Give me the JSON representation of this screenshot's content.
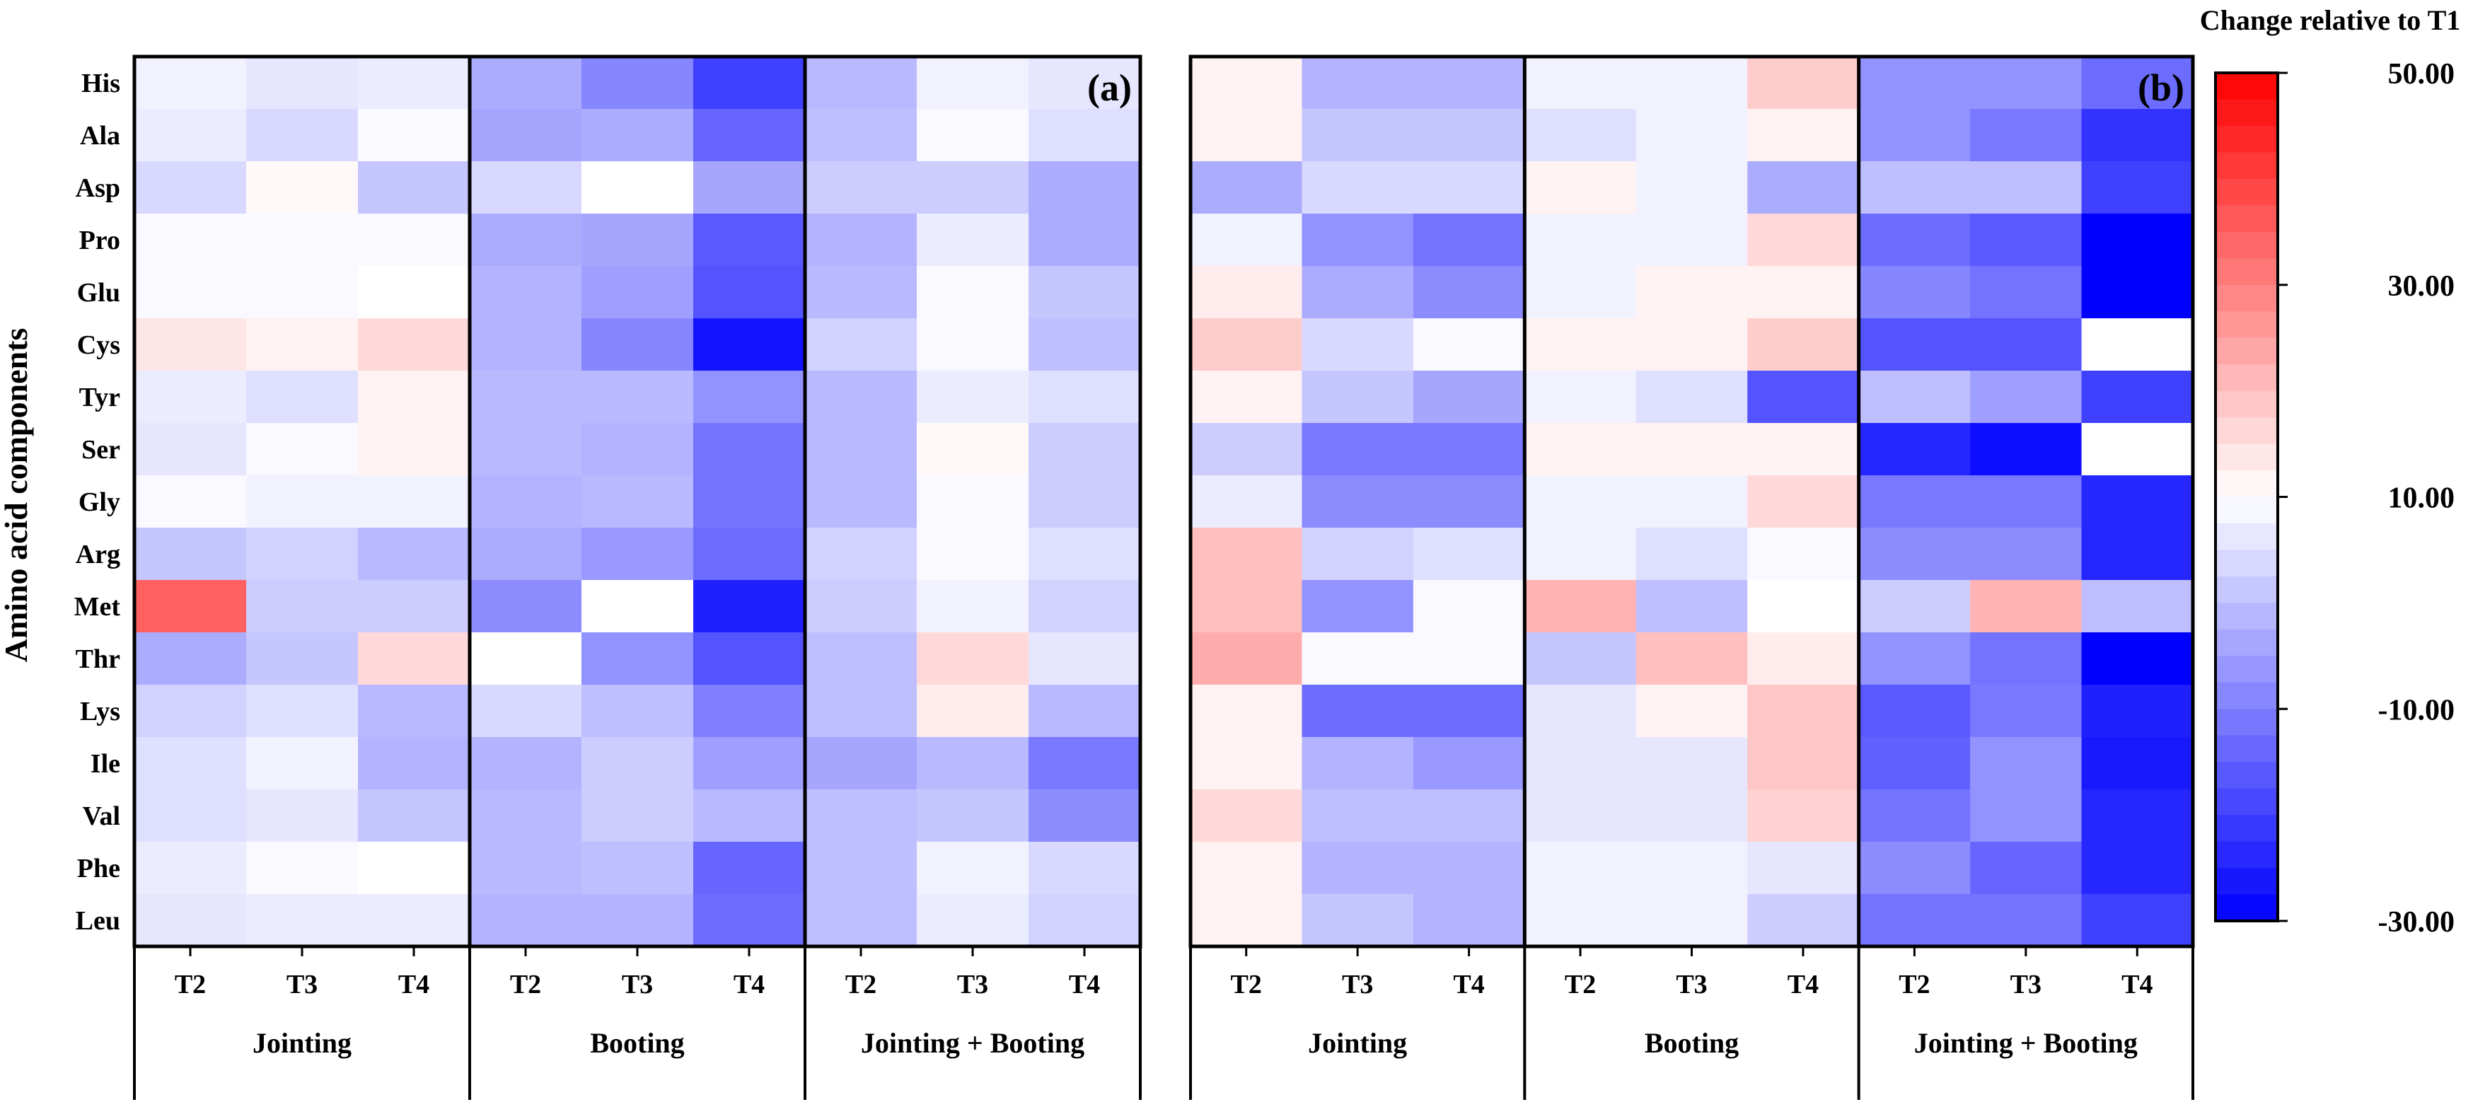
{
  "chart_data": {
    "type": "heatmap",
    "ylabel": "Amino acid components",
    "rows": [
      "His",
      "Ala",
      "Asp",
      "Pro",
      "Glu",
      "Cys",
      "Tyr",
      "Ser",
      "Gly",
      "Arg",
      "Met",
      "Thr",
      "Lys",
      "Ile",
      "Val",
      "Phe",
      "Leu"
    ],
    "columns": [
      "T2",
      "T3",
      "T4"
    ],
    "groups": [
      "Jointing",
      "Booting",
      "Jointing + Booting"
    ],
    "colorbar": {
      "title": "Change relative to T1",
      "min": -30,
      "max": 50,
      "ticks": [
        50,
        30,
        10,
        -10,
        -30
      ],
      "tick_labels": [
        "50.00",
        "30.00",
        "10.00",
        "-10.00",
        "-30.00"
      ],
      "colors": {
        "low": "#0000ff",
        "mid": "#ffffff",
        "high": "#ff0000",
        "mid_value": 10
      }
    },
    "panels": [
      {
        "label": "(a)",
        "values": [
          [
            8,
            6,
            7,
            -3,
            -9,
            -20,
            -1,
            8,
            6
          ],
          [
            7,
            4,
            9,
            -4,
            -3,
            -14,
            0,
            9,
            5
          ],
          [
            4,
            11,
            1,
            4,
            10,
            -4,
            2,
            2,
            -3
          ],
          [
            9,
            9,
            9,
            -3,
            -4,
            -16,
            -2,
            7,
            -3
          ],
          [
            9,
            9,
            10,
            -2,
            -5,
            -17,
            -1,
            9,
            1
          ],
          [
            14,
            12,
            16,
            -2,
            -9,
            -27,
            3,
            9,
            0
          ],
          [
            7,
            5,
            12,
            -1,
            -1,
            -7,
            -1,
            7,
            5
          ],
          [
            6,
            9,
            12,
            -1,
            -2,
            -12,
            -1,
            11,
            2
          ],
          [
            9,
            8,
            8,
            -2,
            -1,
            -12,
            -1,
            9,
            2
          ],
          [
            1,
            3,
            -1,
            -3,
            -6,
            -13,
            3,
            9,
            5
          ],
          [
            35,
            2,
            2,
            -8,
            10,
            -25,
            2,
            8,
            3
          ],
          [
            -3,
            1,
            16,
            10,
            -7,
            -17,
            0,
            16,
            6
          ],
          [
            3,
            5,
            -1,
            4,
            0,
            -10,
            0,
            13,
            -1
          ],
          [
            5,
            8,
            -2,
            -2,
            2,
            -5,
            -4,
            -1,
            -11
          ],
          [
            5,
            6,
            1,
            -1,
            2,
            -1,
            0,
            1,
            -8
          ],
          [
            7,
            9,
            10,
            -1,
            0,
            -14,
            0,
            8,
            4
          ],
          [
            6,
            7,
            7,
            -2,
            -2,
            -13,
            0,
            7,
            3
          ]
        ]
      },
      {
        "label": "(b)",
        "values": [
          [
            12,
            -2,
            -2,
            8,
            8,
            18,
            -7,
            -7,
            -13
          ],
          [
            12,
            1,
            1,
            5,
            8,
            12,
            -7,
            -11,
            -22
          ],
          [
            -3,
            4,
            4,
            12,
            8,
            -3,
            0,
            0,
            -20
          ],
          [
            8,
            -7,
            -12,
            8,
            8,
            16,
            -13,
            -16,
            -30
          ],
          [
            13,
            -3,
            -8,
            8,
            12,
            12,
            -9,
            -12,
            -30
          ],
          [
            18,
            4,
            9,
            12,
            12,
            18,
            -17,
            -17,
            10
          ],
          [
            12,
            1,
            -4,
            8,
            5,
            -17,
            0,
            -5,
            -20
          ],
          [
            2,
            -11,
            -11,
            12,
            12,
            12,
            -24,
            -28,
            10
          ],
          [
            7,
            -8,
            -8,
            8,
            8,
            16,
            -11,
            -11,
            -24
          ],
          [
            20,
            3,
            5,
            8,
            5,
            9,
            -8,
            -8,
            -24
          ],
          [
            20,
            -7,
            9,
            22,
            0,
            10,
            2,
            22,
            0
          ],
          [
            23,
            9,
            9,
            1,
            20,
            13,
            -7,
            -12,
            -30
          ],
          [
            12,
            -13,
            -13,
            6,
            12,
            19,
            -16,
            -11,
            -25
          ],
          [
            12,
            -2,
            -6,
            6,
            6,
            19,
            -15,
            -7,
            -26
          ],
          [
            16,
            0,
            0,
            6,
            6,
            17,
            -12,
            -7,
            -24
          ],
          [
            12,
            -2,
            -2,
            8,
            8,
            6,
            -8,
            -14,
            -24
          ],
          [
            12,
            1,
            -2,
            8,
            8,
            2,
            -12,
            -12,
            -20
          ]
        ]
      }
    ]
  }
}
